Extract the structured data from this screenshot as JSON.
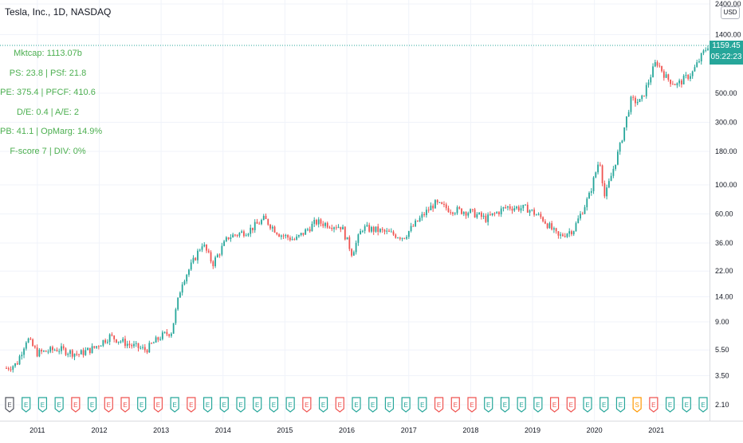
{
  "header": {
    "title": "Tesla, Inc., 1D, NASDAQ",
    "currency_button": "USD"
  },
  "fundamentals": [
    "Mktcap: 1113.07b",
    "PS: 23.8 | PSf: 21.8",
    "PE: 375.4 | PFCF: 410.6",
    "D/E: 0.4 | A/E: 2",
    "PB: 41.1 | OpMarg: 14.9%",
    "F-score 7 | DIV: 0%"
  ],
  "last_price": {
    "value": "1159.45",
    "countdown": "05:22:23"
  },
  "colors": {
    "up": "#26a69a",
    "down": "#ef5350",
    "grid": "#f0f3fa",
    "fundamentals_text": "#4caf50",
    "dividend_marker": "#ff9800"
  },
  "chart_data": {
    "type": "candlestick",
    "title": "Tesla, Inc., 1D, NASDAQ",
    "y_scale": "log",
    "y_ticks": [
      "2400.00",
      "1400.00",
      "500.00",
      "300.00",
      "180.00",
      "100.00",
      "60.00",
      "36.00",
      "22.00",
      "14.00",
      "9.00",
      "5.50",
      "3.50",
      "2.10"
    ],
    "x_ticks": [
      "2011",
      "2012",
      "2013",
      "2014",
      "2015",
      "2016",
      "2017",
      "2018",
      "2019",
      "2020",
      "2021"
    ],
    "grid": true,
    "price_path": [
      [
        "2010-07",
        4.0
      ],
      [
        "2010-09",
        4.3
      ],
      [
        "2010-11",
        6.8
      ],
      [
        "2011-01",
        5.2
      ],
      [
        "2011-05",
        5.6
      ],
      [
        "2011-09",
        5.1
      ],
      [
        "2011-12",
        5.7
      ],
      [
        "2012-03",
        7.0
      ],
      [
        "2012-07",
        6.0
      ],
      [
        "2012-10",
        5.5
      ],
      [
        "2013-01",
        7.0
      ],
      [
        "2013-03",
        7.6
      ],
      [
        "2013-05",
        18.0
      ],
      [
        "2013-07",
        25.0
      ],
      [
        "2013-09",
        36.0
      ],
      [
        "2013-11",
        25.0
      ],
      [
        "2014-02",
        40.0
      ],
      [
        "2014-06",
        45.0
      ],
      [
        "2014-09",
        55.0
      ],
      [
        "2014-12",
        42.0
      ],
      [
        "2015-03",
        38.0
      ],
      [
        "2015-07",
        52.0
      ],
      [
        "2015-12",
        48.0
      ],
      [
        "2016-02",
        30.0
      ],
      [
        "2016-04",
        47.0
      ],
      [
        "2016-07",
        45.0
      ],
      [
        "2016-12",
        40.0
      ],
      [
        "2017-04",
        60.0
      ],
      [
        "2017-06",
        72.0
      ],
      [
        "2017-09",
        65.0
      ],
      [
        "2018-01",
        62.0
      ],
      [
        "2018-04",
        55.0
      ],
      [
        "2018-08",
        68.0
      ],
      [
        "2018-12",
        66.0
      ],
      [
        "2019-03",
        55.0
      ],
      [
        "2019-06",
        40.0
      ],
      [
        "2019-09",
        46.0
      ],
      [
        "2019-12",
        83.0
      ],
      [
        "2020-02",
        160.0
      ],
      [
        "2020-03",
        80.0
      ],
      [
        "2020-06",
        200.0
      ],
      [
        "2020-08",
        440.0
      ],
      [
        "2020-10",
        430.0
      ],
      [
        "2020-12",
        700.0
      ],
      [
        "2021-01",
        880.0
      ],
      [
        "2021-03",
        650.0
      ],
      [
        "2021-05",
        580.0
      ],
      [
        "2021-08",
        720.0
      ],
      [
        "2021-10",
        1000.0
      ],
      [
        "2021-11",
        1159.45
      ]
    ],
    "earnings_markers": [
      {
        "label": "E",
        "color": "neutral"
      },
      {
        "label": "E",
        "color": "up"
      },
      {
        "label": "E",
        "color": "up"
      },
      {
        "label": "E",
        "color": "up"
      },
      {
        "label": "E",
        "color": "down"
      },
      {
        "label": "E",
        "color": "up"
      },
      {
        "label": "E",
        "color": "down"
      },
      {
        "label": "E",
        "color": "down"
      },
      {
        "label": "E",
        "color": "up"
      },
      {
        "label": "E",
        "color": "down"
      },
      {
        "label": "E",
        "color": "up"
      },
      {
        "label": "E",
        "color": "down"
      },
      {
        "label": "E",
        "color": "up"
      },
      {
        "label": "E",
        "color": "up"
      },
      {
        "label": "E",
        "color": "up"
      },
      {
        "label": "E",
        "color": "up"
      },
      {
        "label": "E",
        "color": "up"
      },
      {
        "label": "E",
        "color": "up"
      },
      {
        "label": "E",
        "color": "down"
      },
      {
        "label": "E",
        "color": "up"
      },
      {
        "label": "E",
        "color": "down"
      },
      {
        "label": "E",
        "color": "up"
      },
      {
        "label": "E",
        "color": "up"
      },
      {
        "label": "E",
        "color": "up"
      },
      {
        "label": "E",
        "color": "up"
      },
      {
        "label": "E",
        "color": "up"
      },
      {
        "label": "E",
        "color": "down"
      },
      {
        "label": "E",
        "color": "down"
      },
      {
        "label": "E",
        "color": "down"
      },
      {
        "label": "E",
        "color": "up"
      },
      {
        "label": "E",
        "color": "up"
      },
      {
        "label": "E",
        "color": "up"
      },
      {
        "label": "E",
        "color": "up"
      },
      {
        "label": "E",
        "color": "down"
      },
      {
        "label": "E",
        "color": "down"
      },
      {
        "label": "E",
        "color": "up"
      },
      {
        "label": "E",
        "color": "up"
      },
      {
        "label": "E",
        "color": "up"
      },
      {
        "label": "S",
        "color": "dividend"
      },
      {
        "label": "E",
        "color": "down"
      },
      {
        "label": "E",
        "color": "up"
      },
      {
        "label": "E",
        "color": "up"
      },
      {
        "label": "E",
        "color": "up"
      }
    ]
  }
}
